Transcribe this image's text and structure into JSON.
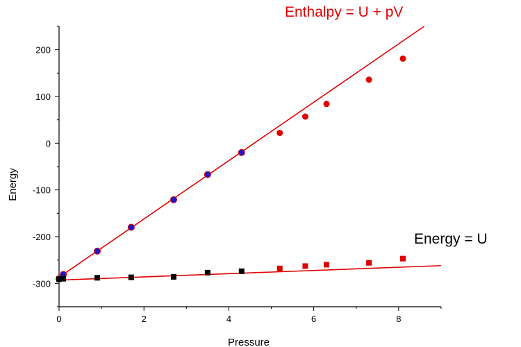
{
  "chart_data": {
    "type": "scatter",
    "title": "",
    "xlabel": "Pressure",
    "ylabel": "Energy",
    "xlim": [
      0,
      9
    ],
    "ylim": [
      -350,
      250
    ],
    "x_ticks": [
      0,
      2,
      4,
      6,
      8
    ],
    "y_ticks": [
      -300,
      -200,
      -100,
      0,
      100,
      200
    ],
    "grid": false,
    "colors": {
      "fit": "#e00000",
      "red_marker": "#e00000",
      "blue_marker": "#1a1acc",
      "black_marker": "#000000",
      "outline": "#e00000"
    },
    "series": [
      {
        "marker": "circle",
        "points": [
          {
            "x": 0.0,
            "y": -290,
            "color": "blue_marker"
          },
          {
            "x": 0.1,
            "y": -281,
            "color": "blue_marker"
          },
          {
            "x": 0.9,
            "y": -231,
            "color": "blue_marker"
          },
          {
            "x": 1.7,
            "y": -180,
            "color": "blue_marker"
          },
          {
            "x": 2.7,
            "y": -121,
            "color": "blue_marker"
          },
          {
            "x": 3.5,
            "y": -67,
            "color": "blue_marker"
          },
          {
            "x": 4.3,
            "y": -20,
            "color": "blue_marker"
          },
          {
            "x": 5.2,
            "y": 22,
            "color": "red_marker"
          },
          {
            "x": 5.8,
            "y": 57,
            "color": "red_marker"
          },
          {
            "x": 6.3,
            "y": 84,
            "color": "red_marker"
          },
          {
            "x": 7.3,
            "y": 136,
            "color": "red_marker"
          },
          {
            "x": 8.1,
            "y": 181,
            "color": "red_marker"
          }
        ],
        "fit": {
          "x0": 0,
          "y0": -287,
          "x1": 8.6,
          "y1": 250
        }
      },
      {
        "marker": "square",
        "points": [
          {
            "x": 0.0,
            "y": -291,
            "color": "black_marker"
          },
          {
            "x": 0.1,
            "y": -290,
            "color": "black_marker"
          },
          {
            "x": 0.9,
            "y": -288,
            "color": "black_marker"
          },
          {
            "x": 1.7,
            "y": -287,
            "color": "black_marker"
          },
          {
            "x": 2.7,
            "y": -286,
            "color": "black_marker"
          },
          {
            "x": 3.5,
            "y": -277,
            "color": "black_marker"
          },
          {
            "x": 4.3,
            "y": -274,
            "color": "black_marker"
          },
          {
            "x": 5.2,
            "y": -268,
            "color": "red_marker"
          },
          {
            "x": 5.8,
            "y": -263,
            "color": "red_marker"
          },
          {
            "x": 6.3,
            "y": -260,
            "color": "red_marker"
          },
          {
            "x": 7.3,
            "y": -256,
            "color": "red_marker"
          },
          {
            "x": 8.1,
            "y": -247,
            "color": "red_marker"
          }
        ],
        "fit": {
          "x0": 0,
          "y0": -293,
          "x1": 9,
          "y1": -262
        }
      }
    ],
    "annotations": [
      {
        "text": "Enthalpy = U + pV",
        "color": "#e00000"
      },
      {
        "text": "Energy = U",
        "color": "#000000"
      }
    ]
  }
}
